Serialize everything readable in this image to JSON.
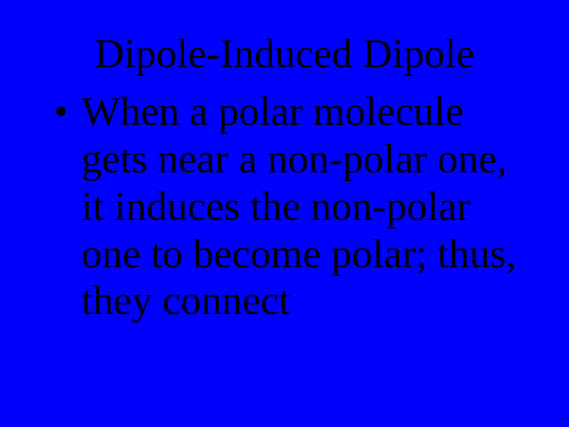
{
  "slide": {
    "background_color": "#0000ff",
    "title": {
      "text": "Dipole-Induced Dipole",
      "color": "#000000",
      "fontsize": 52,
      "font_family": "Times New Roman",
      "alignment": "center"
    },
    "bullets": [
      {
        "text": "When a polar molecule gets near a non-polar one, it induces the non-polar one to become polar; thus, they connect",
        "color": "#000000",
        "fontsize": 52,
        "font_family": "Times New Roman"
      }
    ]
  }
}
